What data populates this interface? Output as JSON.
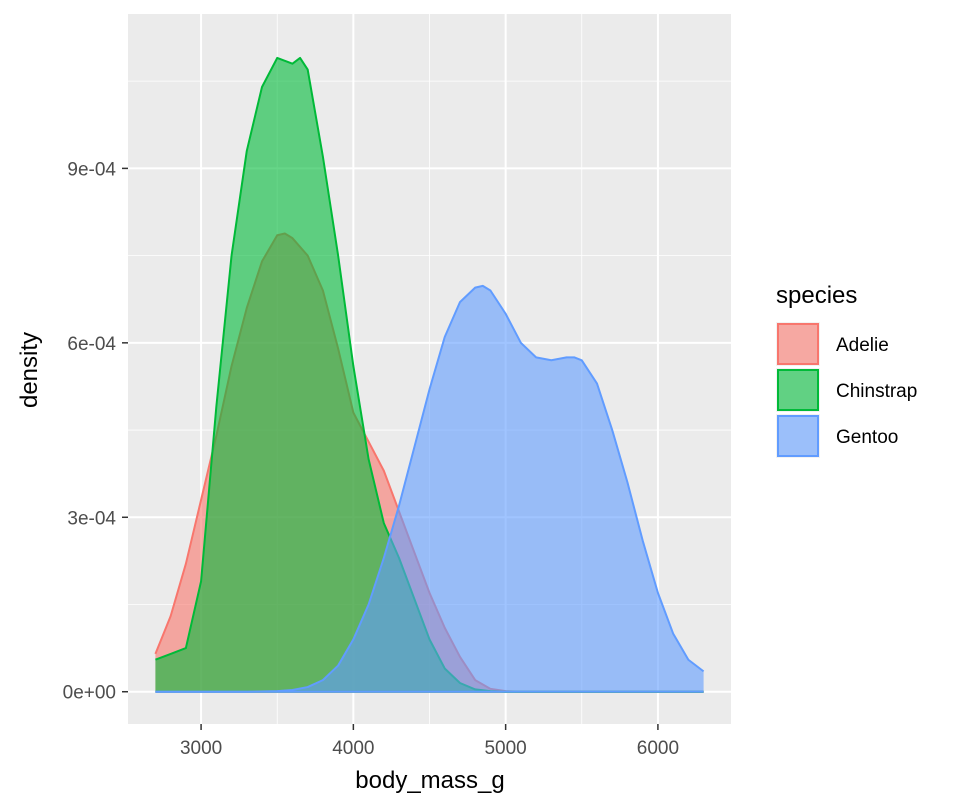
{
  "chart_data": {
    "type": "area",
    "subtype": "density",
    "xlabel": "body_mass_g",
    "ylabel": "density",
    "xlim": [
      2520,
      6480
    ],
    "ylim": [
      -5.55e-05,
      0.0011655
    ],
    "x_ticks": [
      3000,
      4000,
      5000,
      6000
    ],
    "x_tick_labels": [
      "3000",
      "4000",
      "5000",
      "6000"
    ],
    "y_ticks": [
      0,
      0.0003,
      0.0006,
      0.0009
    ],
    "y_tick_labels": [
      "0e+00",
      "3e-04",
      "6e-04",
      "9e-04"
    ],
    "grid": true,
    "legend": {
      "title": "species",
      "position": "right",
      "entries": [
        "Adelie",
        "Chinstrap",
        "Gentoo"
      ]
    },
    "series": [
      {
        "name": "Adelie",
        "fill": "#F8766D",
        "line": "#F8766D",
        "x": [
          2700,
          2800,
          2900,
          3000,
          3100,
          3200,
          3300,
          3400,
          3500,
          3550,
          3600,
          3700,
          3800,
          3900,
          4000,
          4100,
          4200,
          4300,
          4400,
          4500,
          4600,
          4700,
          4800,
          4900,
          5000,
          5100,
          5200,
          5300,
          5400,
          5500,
          5600,
          5700,
          5800,
          5900,
          6000,
          6100,
          6200,
          6300
        ],
        "y": [
          6.5e-05,
          0.00013,
          0.00022,
          0.00033,
          0.00044,
          0.00056,
          0.00066,
          0.00074,
          0.000785,
          0.000788,
          0.00078,
          0.00075,
          0.00069,
          0.00059,
          0.00048,
          0.00043,
          0.00038,
          0.00031,
          0.00024,
          0.00017,
          0.00011,
          6e-05,
          2e-05,
          5e-06,
          1e-06,
          0,
          0,
          0,
          0,
          0,
          0,
          0,
          0,
          0,
          0,
          0,
          0,
          0
        ]
      },
      {
        "name": "Chinstrap",
        "fill": "#00BA38",
        "line": "#00BA38",
        "x": [
          2700,
          2800,
          2900,
          3000,
          3100,
          3200,
          3300,
          3400,
          3500,
          3600,
          3650,
          3700,
          3800,
          3900,
          4000,
          4100,
          4200,
          4300,
          4400,
          4500,
          4600,
          4700,
          4800,
          4900,
          5000,
          5100,
          5200,
          5300,
          5400,
          5500,
          5600,
          5700,
          5800,
          5900,
          6000,
          6100,
          6200,
          6300
        ],
        "y": [
          5.5e-05,
          6.5e-05,
          7.5e-05,
          0.00019,
          0.00049,
          0.00075,
          0.00093,
          0.00104,
          0.00109,
          0.00108,
          0.00109,
          0.00107,
          0.00092,
          0.00075,
          0.00056,
          0.0004,
          0.00029,
          0.00023,
          0.00016,
          9e-05,
          4e-05,
          1.5e-05,
          4e-06,
          1e-06,
          0,
          0,
          0,
          0,
          0,
          0,
          0,
          0,
          0,
          0,
          0,
          0,
          0,
          0
        ]
      },
      {
        "name": "Gentoo",
        "fill": "#619CFF",
        "line": "#619CFF",
        "x": [
          2700,
          3000,
          3300,
          3500,
          3600,
          3700,
          3800,
          3900,
          4000,
          4100,
          4200,
          4300,
          4400,
          4500,
          4600,
          4700,
          4800,
          4850,
          4900,
          5000,
          5100,
          5200,
          5300,
          5400,
          5450,
          5500,
          5600,
          5700,
          5800,
          5900,
          6000,
          6100,
          6200,
          6300
        ],
        "y": [
          0,
          0,
          0,
          1e-06,
          3e-06,
          8e-06,
          2e-05,
          4.5e-05,
          9e-05,
          0.00015,
          0.00023,
          0.00032,
          0.00042,
          0.00052,
          0.00061,
          0.00067,
          0.000695,
          0.000698,
          0.00069,
          0.00065,
          0.0006,
          0.000575,
          0.00057,
          0.000575,
          0.000575,
          0.00057,
          0.00053,
          0.00045,
          0.00036,
          0.00026,
          0.00017,
          0.0001,
          5.5e-05,
          3.5e-05
        ]
      }
    ]
  }
}
